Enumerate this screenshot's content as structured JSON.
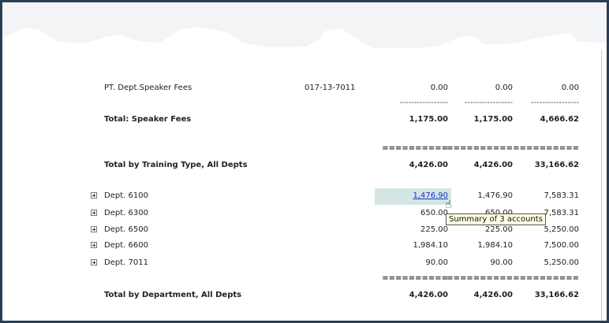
{
  "detail_row": {
    "label": "PT. Dept.Speaker Fees",
    "account": "017-13-7011",
    "values": [
      "0.00",
      "0.00",
      "0.00"
    ]
  },
  "dash_separator": [
    "-----------------",
    "-----------------",
    "-----------------"
  ],
  "speaker_total": {
    "label": "Total: Speaker Fees",
    "values": [
      "1,175.00",
      "1,175.00",
      "4,666.62"
    ]
  },
  "equals_separator": [
    "==========",
    "==========",
    "=========="
  ],
  "training_total": {
    "label": "Total by Training Type, All Depts",
    "values": [
      "4,426.00",
      "4,426.00",
      "33,166.62"
    ]
  },
  "departments": [
    {
      "label": "Dept. 6100",
      "values": [
        "1,476.90",
        "1,476.90",
        "7,583.31"
      ]
    },
    {
      "label": "Dept. 6300",
      "values": [
        "650.00",
        "650.00",
        "7,583.31"
      ]
    },
    {
      "label": "Dept. 6500",
      "values": [
        "225.00",
        "225.00",
        "5,250.00"
      ]
    },
    {
      "label": "Dept. 6600",
      "values": [
        "1,984.10",
        "1,984.10",
        "7,500.00"
      ]
    },
    {
      "label": "Dept. 7011",
      "values": [
        "90.00",
        "90.00",
        "5,250.00"
      ]
    }
  ],
  "department_total": {
    "label": "Total by Department, All Depts",
    "values": [
      "4,426.00",
      "4,426.00",
      "33,166.62"
    ]
  },
  "tooltip": "Summary of 3 accounts",
  "colors": {
    "link": "#1a33cc",
    "highlight": "#d3e6e4",
    "frame": "#2a3d57",
    "tooltip_bg": "#ffffe1"
  }
}
